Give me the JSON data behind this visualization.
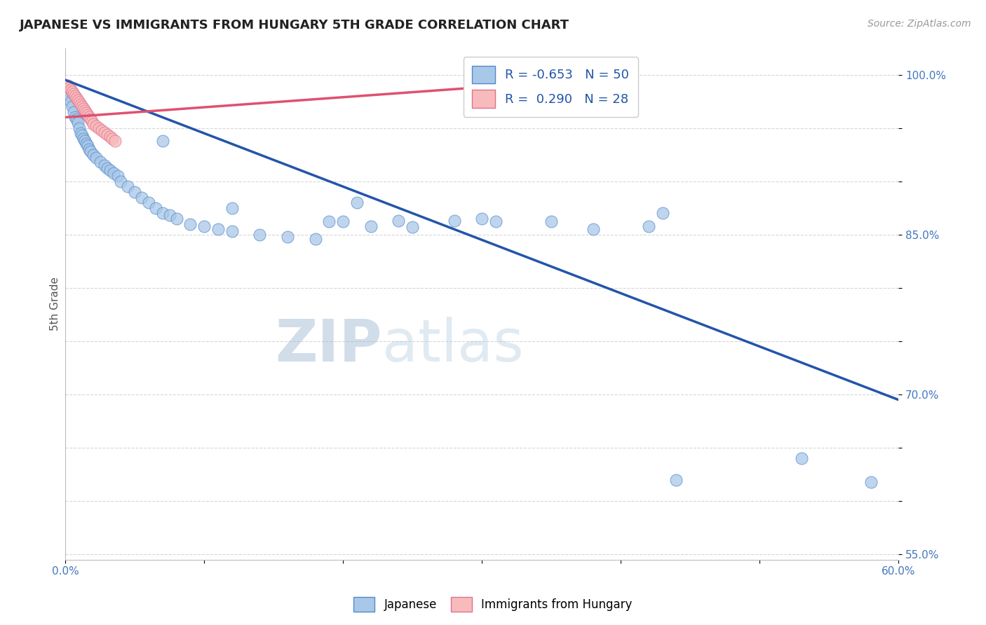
{
  "title": "JAPANESE VS IMMIGRANTS FROM HUNGARY 5TH GRADE CORRELATION CHART",
  "source_text": "Source: ZipAtlas.com",
  "ylabel": "5th Grade",
  "watermark_zip": "ZIP",
  "watermark_atlas": "atlas",
  "x_min": 0.0,
  "x_max": 0.6,
  "y_min": 0.545,
  "y_max": 1.025,
  "x_ticks": [
    0.0,
    0.1,
    0.2,
    0.3,
    0.4,
    0.5,
    0.6
  ],
  "x_tick_labels": [
    "0.0%",
    "",
    "",
    "",
    "",
    "",
    "60.0%"
  ],
  "y_ticks": [
    0.55,
    0.6,
    0.65,
    0.7,
    0.75,
    0.8,
    0.85,
    0.9,
    0.95,
    1.0
  ],
  "y_tick_labels": [
    "55.0%",
    "",
    "",
    "70.0%",
    "",
    "",
    "85.0%",
    "",
    "",
    "100.0%"
  ],
  "legend_r1": "R = -0.653",
  "legend_n1": "N = 50",
  "legend_r2": "R =  0.290",
  "legend_n2": "N = 28",
  "blue_color": "#A8C8E8",
  "blue_edge_color": "#5588CC",
  "blue_line_color": "#2255AA",
  "pink_color": "#F8BBBB",
  "pink_edge_color": "#E07090",
  "pink_line_color": "#E05070",
  "grid_color": "#CCCCCC",
  "bg_color": "#FFFFFF",
  "blue_scatter_x": [
    0.002,
    0.003,
    0.004,
    0.005,
    0.006,
    0.007,
    0.008,
    0.009,
    0.01,
    0.011,
    0.012,
    0.013,
    0.014,
    0.015,
    0.016,
    0.017,
    0.018,
    0.02,
    0.022,
    0.025,
    0.028,
    0.03,
    0.032,
    0.035,
    0.038,
    0.04,
    0.045,
    0.05,
    0.055,
    0.06,
    0.065,
    0.07,
    0.075,
    0.08,
    0.09,
    0.1,
    0.11,
    0.12,
    0.14,
    0.16,
    0.18,
    0.2,
    0.22,
    0.25,
    0.28,
    0.3,
    0.35,
    0.38,
    0.42,
    0.58
  ],
  "blue_scatter_y": [
    0.985,
    0.98,
    0.975,
    0.97,
    0.965,
    0.96,
    0.958,
    0.955,
    0.95,
    0.945,
    0.943,
    0.94,
    0.938,
    0.935,
    0.933,
    0.93,
    0.928,
    0.925,
    0.922,
    0.918,
    0.915,
    0.912,
    0.91,
    0.908,
    0.905,
    0.9,
    0.895,
    0.89,
    0.885,
    0.88,
    0.875,
    0.87,
    0.868,
    0.865,
    0.86,
    0.858,
    0.855,
    0.853,
    0.85,
    0.848,
    0.846,
    0.862,
    0.858,
    0.857,
    0.863,
    0.865,
    0.862,
    0.855,
    0.858,
    0.618
  ],
  "blue_scatter_x2": [
    0.07,
    0.12,
    0.19,
    0.21,
    0.24,
    0.31,
    0.43,
    0.53,
    0.44
  ],
  "blue_scatter_y2": [
    0.938,
    0.875,
    0.862,
    0.88,
    0.863,
    0.862,
    0.87,
    0.64,
    0.62
  ],
  "pink_scatter_x": [
    0.002,
    0.003,
    0.004,
    0.005,
    0.006,
    0.007,
    0.008,
    0.009,
    0.01,
    0.011,
    0.012,
    0.013,
    0.014,
    0.015,
    0.016,
    0.017,
    0.018,
    0.019,
    0.02,
    0.022,
    0.024,
    0.026,
    0.028,
    0.03,
    0.032,
    0.034,
    0.036,
    0.3
  ],
  "pink_scatter_y": [
    0.99,
    0.988,
    0.986,
    0.984,
    0.982,
    0.98,
    0.978,
    0.976,
    0.974,
    0.972,
    0.97,
    0.968,
    0.966,
    0.964,
    0.962,
    0.96,
    0.958,
    0.956,
    0.954,
    0.952,
    0.95,
    0.948,
    0.946,
    0.944,
    0.942,
    0.94,
    0.938,
    0.992
  ],
  "blue_line_x": [
    0.0,
    0.6
  ],
  "blue_line_y": [
    0.995,
    0.695
  ],
  "pink_line_x": [
    0.0,
    0.35
  ],
  "pink_line_y": [
    0.96,
    0.993
  ]
}
